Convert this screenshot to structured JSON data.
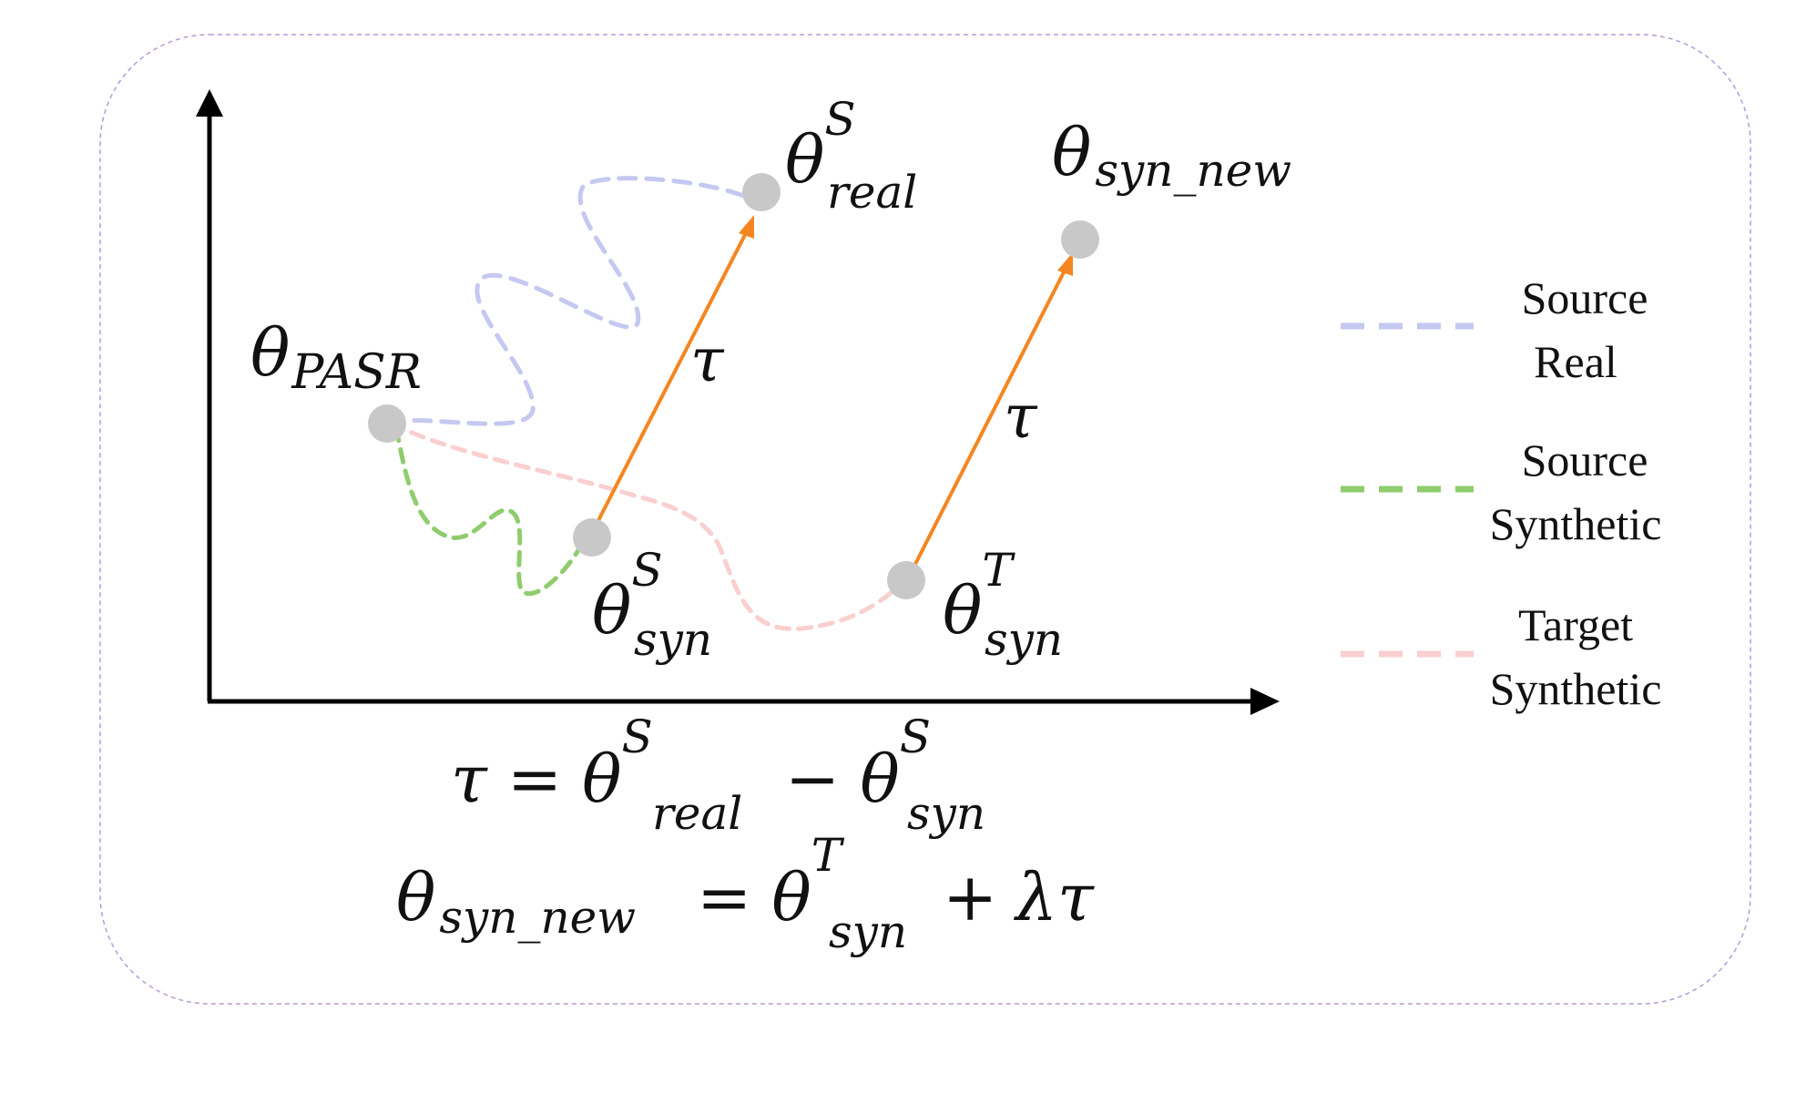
{
  "colors": {
    "frame": "#b79ad6",
    "axis": "#000000",
    "arrow": "#f5851f",
    "point": "#c8c8c8",
    "source_real": "#c5c8f0",
    "source_synthetic": "#8fcc6d",
    "target_synthetic": "#f9cfcf"
  },
  "labels": {
    "theta": "θ",
    "tau": "τ",
    "pasr": "PASR",
    "real": "real",
    "syn": "syn",
    "syn_new": "syn_new",
    "S": "S",
    "T": "T"
  },
  "legend": [
    {
      "line1": "Source",
      "line2": "Real",
      "color_key": "source_real"
    },
    {
      "line1": "Source",
      "line2": "Synthetic",
      "color_key": "source_synthetic"
    },
    {
      "line1": "Target",
      "line2": "Synthetic",
      "color_key": "target_synthetic"
    }
  ],
  "equations": {
    "eq1": {
      "tau": "τ",
      "equals": "=",
      "theta": "θ",
      "sup": "S",
      "sub": "real",
      "minus": "−",
      "theta2": "θ",
      "sup2": "S",
      "sub2": "syn"
    },
    "eq2": {
      "theta": "θ",
      "sub": "syn_new",
      "equals": "=",
      "theta2": "θ",
      "sup2": "T",
      "sub2": "syn",
      "plus": "+",
      "lambda_tau": "λτ"
    }
  }
}
